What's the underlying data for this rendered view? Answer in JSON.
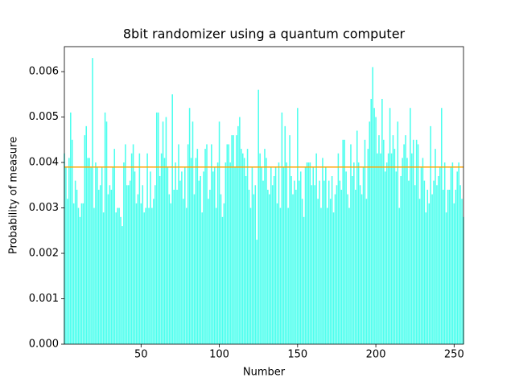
{
  "chart_data": {
    "type": "bar",
    "title": "8bit randomizer using a quantum computer",
    "xlabel": "Number",
    "ylabel": "Probability of measure",
    "color": "#4dffee",
    "hline": 0.0039,
    "hline_color": "#ffa500",
    "xlim": [
      1,
      256
    ],
    "ylim": [
      0,
      0.00655
    ],
    "xticks": [
      50,
      100,
      150,
      200,
      250
    ],
    "yticks": [
      {
        "value": 0,
        "label": "0.000"
      },
      {
        "value": 0.001,
        "label": "0.001"
      },
      {
        "value": 0.002,
        "label": "0.002"
      },
      {
        "value": 0.003,
        "label": "0.003"
      },
      {
        "value": 0.004,
        "label": "0.004"
      },
      {
        "value": 0.005,
        "label": "0.005"
      },
      {
        "value": 0.006,
        "label": "0.006"
      }
    ],
    "x": [
      1,
      2,
      3,
      4,
      5,
      6,
      7,
      8,
      9,
      10,
      11,
      12,
      13,
      14,
      15,
      16,
      17,
      18,
      19,
      20,
      21,
      22,
      23,
      24,
      25,
      26,
      27,
      28,
      29,
      30,
      31,
      32,
      33,
      34,
      35,
      36,
      37,
      38,
      39,
      40,
      41,
      42,
      43,
      44,
      45,
      46,
      47,
      48,
      49,
      50,
      51,
      52,
      53,
      54,
      55,
      56,
      57,
      58,
      59,
      60,
      61,
      62,
      63,
      64,
      65,
      66,
      67,
      68,
      69,
      70,
      71,
      72,
      73,
      74,
      75,
      76,
      77,
      78,
      79,
      80,
      81,
      82,
      83,
      84,
      85,
      86,
      87,
      88,
      89,
      90,
      91,
      92,
      93,
      94,
      95,
      96,
      97,
      98,
      99,
      100,
      101,
      102,
      103,
      104,
      105,
      106,
      107,
      108,
      109,
      110,
      111,
      112,
      113,
      114,
      115,
      116,
      117,
      118,
      119,
      120,
      121,
      122,
      123,
      124,
      125,
      126,
      127,
      128,
      129,
      130,
      131,
      132,
      133,
      134,
      135,
      136,
      137,
      138,
      139,
      140,
      141,
      142,
      143,
      144,
      145,
      146,
      147,
      148,
      149,
      150,
      151,
      152,
      153,
      154,
      155,
      156,
      157,
      158,
      159,
      160,
      161,
      162,
      163,
      164,
      165,
      166,
      167,
      168,
      169,
      170,
      171,
      172,
      173,
      174,
      175,
      176,
      177,
      178,
      179,
      180,
      181,
      182,
      183,
      184,
      185,
      186,
      187,
      188,
      189,
      190,
      191,
      192,
      193,
      194,
      195,
      196,
      197,
      198,
      199,
      200,
      201,
      202,
      203,
      204,
      205,
      206,
      207,
      208,
      209,
      210,
      211,
      212,
      213,
      214,
      215,
      216,
      217,
      218,
      219,
      220,
      221,
      222,
      223,
      224,
      225,
      226,
      227,
      228,
      229,
      230,
      231,
      232,
      233,
      234,
      235,
      236,
      237,
      238,
      239,
      240,
      241,
      242,
      243,
      244,
      245,
      246,
      247,
      248,
      249,
      250,
      251,
      252,
      253,
      254,
      255,
      256
    ],
    "values": [
      0.0042,
      0.0039,
      0.0032,
      0.0041,
      0.0051,
      0.0045,
      0.0031,
      0.0036,
      0.0034,
      0.003,
      0.0028,
      0.0031,
      0.0031,
      0.0046,
      0.0048,
      0.0041,
      0.0041,
      0.0039,
      0.0063,
      0.003,
      0.004,
      0.0039,
      0.0034,
      0.0035,
      0.0039,
      0.0029,
      0.0051,
      0.0049,
      0.0033,
      0.0035,
      0.0034,
      0.0039,
      0.0043,
      0.0029,
      0.003,
      0.003,
      0.0028,
      0.0026,
      0.004,
      0.0044,
      0.0035,
      0.0035,
      0.0036,
      0.0042,
      0.0044,
      0.0038,
      0.0031,
      0.0033,
      0.0042,
      0.0031,
      0.0035,
      0.0029,
      0.003,
      0.0042,
      0.003,
      0.0038,
      0.003,
      0.0032,
      0.0035,
      0.0051,
      0.0051,
      0.0037,
      0.0042,
      0.0049,
      0.0041,
      0.005,
      0.0039,
      0.0033,
      0.0031,
      0.0055,
      0.0034,
      0.004,
      0.0034,
      0.0044,
      0.0036,
      0.0038,
      0.0032,
      0.0039,
      0.003,
      0.0044,
      0.0052,
      0.0041,
      0.0049,
      0.0033,
      0.0041,
      0.0043,
      0.0036,
      0.0037,
      0.0029,
      0.0038,
      0.0043,
      0.0044,
      0.0032,
      0.0034,
      0.0044,
      0.0038,
      0.0039,
      0.003,
      0.004,
      0.0049,
      0.0033,
      0.0028,
      0.0031,
      0.004,
      0.0044,
      0.0044,
      0.004,
      0.0046,
      0.0046,
      0.0039,
      0.0046,
      0.0048,
      0.005,
      0.0043,
      0.0042,
      0.0041,
      0.0037,
      0.0043,
      0.0034,
      0.003,
      0.0039,
      0.0033,
      0.0035,
      0.0023,
      0.0056,
      0.0042,
      0.0039,
      0.0036,
      0.0043,
      0.0041,
      0.0034,
      0.0033,
      0.0039,
      0.0035,
      0.0037,
      0.0039,
      0.0031,
      0.004,
      0.003,
      0.0051,
      0.0039,
      0.0048,
      0.004,
      0.003,
      0.0046,
      0.0037,
      0.0033,
      0.0036,
      0.0034,
      0.0052,
      0.0036,
      0.0038,
      0.0032,
      0.0028,
      0.0039,
      0.004,
      0.004,
      0.004,
      0.0035,
      0.0039,
      0.0035,
      0.0042,
      0.0032,
      0.0036,
      0.003,
      0.0041,
      0.0036,
      0.0039,
      0.003,
      0.0036,
      0.0032,
      0.0037,
      0.0029,
      0.0033,
      0.0035,
      0.0042,
      0.0036,
      0.0034,
      0.0045,
      0.0045,
      0.0038,
      0.0033,
      0.003,
      0.0044,
      0.0037,
      0.004,
      0.0034,
      0.0047,
      0.004,
      0.0035,
      0.0033,
      0.0039,
      0.0045,
      0.0032,
      0.0043,
      0.0049,
      0.0054,
      0.0061,
      0.0052,
      0.005,
      0.0042,
      0.0046,
      0.0042,
      0.0054,
      0.0045,
      0.0038,
      0.004,
      0.0042,
      0.0052,
      0.0042,
      0.0046,
      0.0043,
      0.0038,
      0.0049,
      0.003,
      0.0037,
      0.0041,
      0.0044,
      0.0046,
      0.0041,
      0.0036,
      0.0052,
      0.0042,
      0.0045,
      0.0035,
      0.0045,
      0.0044,
      0.0032,
      0.0039,
      0.0041,
      0.0036,
      0.0029,
      0.0034,
      0.0031,
      0.0048,
      0.0033,
      0.0036,
      0.0043,
      0.0035,
      0.0037,
      0.0039,
      0.0052,
      0.0034,
      0.004,
      0.0029,
      0.0034,
      0.0034,
      0.0039,
      0.004,
      0.0031,
      0.0034,
      0.0038,
      0.004,
      0.0035,
      0.0032,
      0.0028
    ]
  }
}
